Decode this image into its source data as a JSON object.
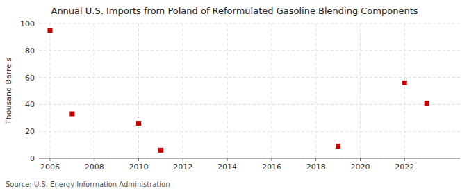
{
  "chart_data": {
    "type": "scatter",
    "title": "Annual U.S. Imports from Poland of Reformulated Gasoline Blending Components",
    "ylabel": "Thousand Barrels",
    "source": "Source: U.S. Energy Information Administration",
    "x": [
      2006,
      2007,
      2010,
      2011,
      2019,
      2022,
      2023
    ],
    "values": [
      95,
      33,
      26,
      6,
      9,
      56,
      41
    ],
    "xlim": [
      2005.5,
      2024.5
    ],
    "xticks": [
      2006,
      2008,
      2010,
      2012,
      2014,
      2016,
      2018,
      2020,
      2022
    ],
    "ylim": [
      0,
      100
    ],
    "yticks": [
      0,
      20,
      40,
      60,
      80,
      100
    ],
    "grid": true,
    "color": "#cc0000",
    "marker": "square"
  }
}
